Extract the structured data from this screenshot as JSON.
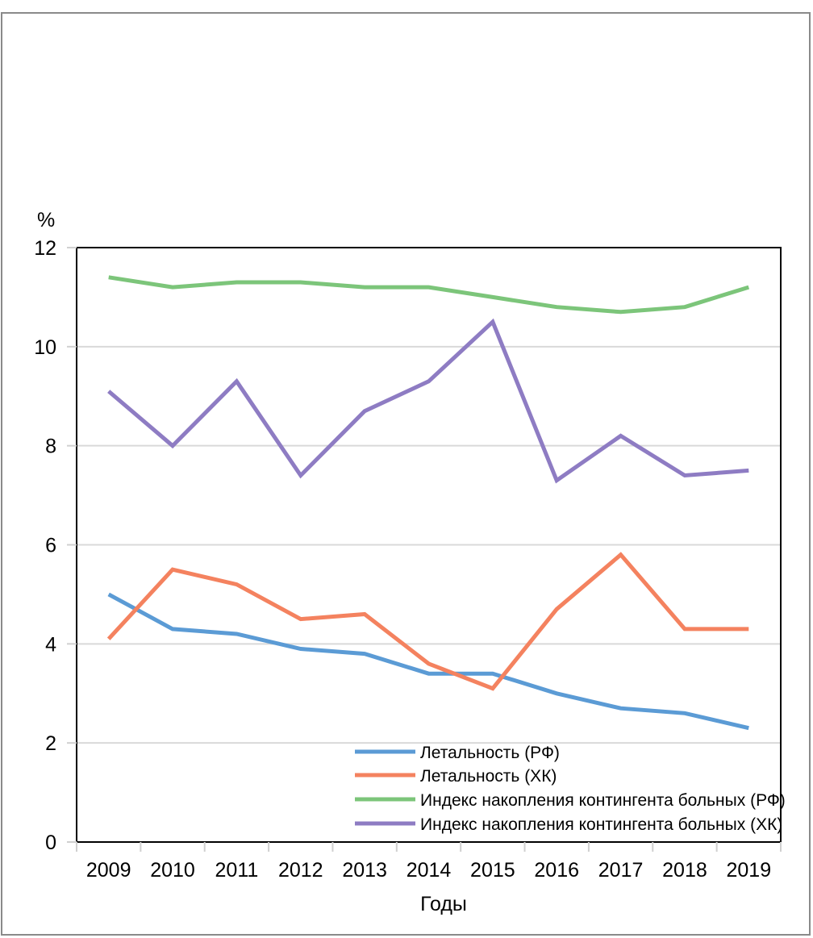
{
  "chart_data": {
    "type": "line",
    "title": "",
    "xlabel": "Годы",
    "ylabel": "%",
    "ylim": [
      0,
      12
    ],
    "yticks": [
      0,
      2,
      4,
      6,
      8,
      10,
      12
    ],
    "grid": "horizontal",
    "legend_position": "bottom-right (inside plot)",
    "categories": [
      "2009",
      "2010",
      "2011",
      "2012",
      "2013",
      "2014",
      "2015",
      "2016",
      "2017",
      "2018",
      "2019"
    ],
    "series": [
      {
        "name": "Летальность (РФ)",
        "color": "#5b9bd5",
        "values": [
          5.0,
          4.3,
          4.2,
          3.9,
          3.8,
          3.4,
          3.4,
          3.0,
          2.7,
          2.6,
          2.3
        ]
      },
      {
        "name": "Летальность (ХК)",
        "color": "#f4825f",
        "values": [
          4.1,
          5.5,
          5.2,
          4.5,
          4.6,
          3.6,
          3.1,
          4.7,
          5.8,
          4.3,
          4.3
        ]
      },
      {
        "name": "Индекс накопления контингента больных (РФ)",
        "color": "#7cc57a",
        "values": [
          11.4,
          11.2,
          11.3,
          11.3,
          11.2,
          11.2,
          11.0,
          10.8,
          10.7,
          10.8,
          11.2
        ]
      },
      {
        "name": "Индекс накопления контингента больных (ХК)",
        "color": "#8e7cc3",
        "values": [
          9.1,
          8.0,
          9.3,
          7.4,
          8.7,
          9.3,
          10.5,
          7.3,
          8.2,
          7.4,
          7.5
        ]
      }
    ]
  }
}
